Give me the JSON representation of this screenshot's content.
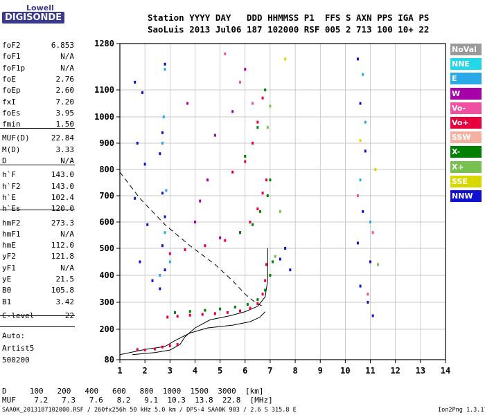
{
  "logo": {
    "line1": "Lowell",
    "line2": "DIGISONDE"
  },
  "header": {
    "line1": "Station YYYY DAY   DDD HHMMSS P1  FFS S AXN PPS IGA PS",
    "line2": "SaoLuis 2013 Jul06 187 102000 RSF 005 2 713 100 10+ 22"
  },
  "params": [
    {
      "label": "foF2",
      "value": "6.853"
    },
    {
      "label": "foF1",
      "value": "N/A"
    },
    {
      "label": "foF1p",
      "value": "N/A"
    },
    {
      "label": "foE",
      "value": "2.76"
    },
    {
      "label": "foEp",
      "value": "2.60"
    },
    {
      "label": "fxI",
      "value": "7.20"
    },
    {
      "label": "foEs",
      "value": "3.95"
    },
    {
      "label": "fmin",
      "value": "1.50"
    },
    {
      "label": "MUF(D)",
      "value": "22.84"
    },
    {
      "label": "M(D)",
      "value": "3.33"
    },
    {
      "label": "D",
      "value": "N/A"
    },
    {
      "label": "h`F",
      "value": "143.0"
    },
    {
      "label": "h`F2",
      "value": "143.0"
    },
    {
      "label": "h`E",
      "value": "102.4"
    },
    {
      "label": "h`Es",
      "value": "120.0"
    },
    {
      "label": "hmF2",
      "value": "273.3"
    },
    {
      "label": "hmF1",
      "value": "N/A"
    },
    {
      "label": "hmE",
      "value": "112.0"
    },
    {
      "label": "yF2",
      "value": "121.8"
    },
    {
      "label": "yF1",
      "value": "N/A"
    },
    {
      "label": "yE",
      "value": "21.5"
    },
    {
      "label": "B0",
      "value": "105.8"
    },
    {
      "label": "B1",
      "value": "3.42"
    },
    {
      "label": "C-level",
      "value": "22"
    }
  ],
  "auto": {
    "line1": "Auto:",
    "line2": "Artist5",
    "line3": "500200"
  },
  "legend": [
    {
      "label": "NoVal",
      "color": "#9a9a9a"
    },
    {
      "label": "NNE",
      "color": "#22d8e8"
    },
    {
      "label": "E",
      "color": "#2aa8e8"
    },
    {
      "label": "W",
      "color": "#a800a8"
    },
    {
      "label": "Vo-",
      "color": "#f050a0"
    },
    {
      "label": "Vo+",
      "color": "#e8003c"
    },
    {
      "label": "SSW",
      "color": "#f4b0a0"
    },
    {
      "label": "X-",
      "color": "#008000"
    },
    {
      "label": "X+",
      "color": "#78c050"
    },
    {
      "label": "SSE",
      "color": "#d8d800"
    },
    {
      "label": "NNW",
      "color": "#1010d0"
    }
  ],
  "muf_table": {
    "d_row": "D     100   200   400   600   800  1000  1500  3000  [km]",
    "muf_row": "MUF    7.2   7.3   7.6   8.2   9.1  10.3  13.8  22.8  [MHz]"
  },
  "footer": {
    "left": "SAA0K_2013187102000.RSF / 260fx256h 50 kHz 5.0 km / DPS-4 SAA0K 903 / 2.6 S 315.8 E",
    "right": "Ion2Png 1.3.17"
  },
  "chart_data": {
    "type": "scatter",
    "x_ticks": [
      "1",
      "2",
      "3",
      "4",
      "5",
      "6",
      "7",
      "8",
      "9",
      "10",
      "11",
      "12",
      "13",
      "14"
    ],
    "y_ticks": [
      "80",
      "200",
      "300",
      "400",
      "500",
      "600",
      "700",
      "800",
      "900",
      "1000",
      "1100",
      "1280"
    ],
    "xlim": [
      1,
      14
    ],
    "ylim": [
      80,
      1280
    ],
    "grid": true,
    "series": [
      {
        "name": "Vo+",
        "color": "#e8003c",
        "points": [
          [
            2.9,
            245
          ],
          [
            3.3,
            248
          ],
          [
            3.8,
            252
          ],
          [
            4.3,
            255
          ],
          [
            4.8,
            258
          ],
          [
            5.3,
            262
          ],
          [
            5.8,
            268
          ],
          [
            6.2,
            278
          ],
          [
            6.5,
            295
          ],
          [
            6.7,
            330
          ],
          [
            6.8,
            380
          ],
          [
            6.85,
            440
          ],
          [
            3.0,
            480
          ],
          [
            3.6,
            495
          ],
          [
            4.4,
            510
          ],
          [
            5.2,
            530
          ],
          [
            5.8,
            560
          ],
          [
            6.2,
            600
          ],
          [
            6.5,
            650
          ],
          [
            6.7,
            710
          ],
          [
            6.85,
            760
          ],
          [
            5.5,
            790
          ],
          [
            6.0,
            830
          ],
          [
            6.3,
            900
          ],
          [
            6.5,
            980
          ],
          [
            6.7,
            1070
          ],
          [
            1.7,
            120
          ],
          [
            2.0,
            118
          ],
          [
            2.4,
            122
          ],
          [
            2.7,
            130
          ],
          [
            3.0,
            135
          ],
          [
            3.3,
            140
          ]
        ]
      },
      {
        "name": "X-",
        "color": "#008000",
        "points": [
          [
            3.2,
            262
          ],
          [
            3.8,
            266
          ],
          [
            4.4,
            270
          ],
          [
            5.0,
            275
          ],
          [
            5.6,
            282
          ],
          [
            6.1,
            292
          ],
          [
            6.5,
            310
          ],
          [
            6.8,
            345
          ],
          [
            7.0,
            400
          ],
          [
            7.1,
            450
          ],
          [
            5.8,
            560
          ],
          [
            6.3,
            590
          ],
          [
            6.6,
            640
          ],
          [
            6.9,
            700
          ],
          [
            7.0,
            760
          ],
          [
            6.0,
            850
          ],
          [
            6.5,
            960
          ],
          [
            6.8,
            1100
          ]
        ]
      },
      {
        "name": "NNW",
        "color": "#1010d0",
        "points": [
          [
            1.6,
            1130
          ],
          [
            1.9,
            1090
          ],
          [
            2.8,
            1200
          ],
          [
            2.7,
            940
          ],
          [
            2.6,
            860
          ],
          [
            2.7,
            710
          ],
          [
            2.8,
            620
          ],
          [
            2.7,
            510
          ],
          [
            2.8,
            420
          ],
          [
            2.6,
            350
          ],
          [
            1.7,
            900
          ],
          [
            2.0,
            820
          ],
          [
            1.6,
            690
          ],
          [
            2.1,
            590
          ],
          [
            1.8,
            450
          ],
          [
            2.3,
            380
          ],
          [
            10.5,
            1220
          ],
          [
            10.6,
            1050
          ],
          [
            10.8,
            870
          ],
          [
            10.7,
            640
          ],
          [
            10.5,
            520
          ],
          [
            11.0,
            450
          ],
          [
            10.6,
            360
          ],
          [
            10.9,
            300
          ],
          [
            11.1,
            250
          ],
          [
            7.4,
            460
          ],
          [
            7.6,
            500
          ],
          [
            7.8,
            420
          ]
        ]
      },
      {
        "name": "E",
        "color": "#2aa8e8",
        "points": [
          [
            2.8,
            1180
          ],
          [
            2.75,
            1000
          ],
          [
            2.7,
            900
          ],
          [
            2.85,
            720
          ],
          [
            2.8,
            560
          ],
          [
            3.0,
            450
          ],
          [
            2.6,
            400
          ],
          [
            10.7,
            1160
          ],
          [
            10.8,
            980
          ],
          [
            10.6,
            760
          ],
          [
            11.0,
            600
          ]
        ]
      },
      {
        "name": "W",
        "color": "#a800a8",
        "points": [
          [
            4.5,
            760
          ],
          [
            4.2,
            680
          ],
          [
            5.0,
            540
          ],
          [
            4.0,
            600
          ],
          [
            3.7,
            1050
          ],
          [
            4.8,
            930
          ],
          [
            5.5,
            1020
          ],
          [
            6.0,
            1180
          ]
        ]
      },
      {
        "name": "Vo-",
        "color": "#f050a0",
        "points": [
          [
            5.2,
            1240
          ],
          [
            5.8,
            1130
          ],
          [
            6.3,
            1050
          ],
          [
            10.5,
            700
          ],
          [
            10.9,
            330
          ],
          [
            11.1,
            560
          ]
        ]
      },
      {
        "name": "X+",
        "color": "#78c050",
        "points": [
          [
            7.0,
            1040
          ],
          [
            6.9,
            960
          ],
          [
            7.4,
            640
          ],
          [
            11.3,
            440
          ],
          [
            7.2,
            470
          ]
        ]
      },
      {
        "name": "SSE",
        "color": "#d8d800",
        "points": [
          [
            7.6,
            1220
          ],
          [
            10.6,
            910
          ],
          [
            11.2,
            800
          ]
        ]
      }
    ]
  }
}
